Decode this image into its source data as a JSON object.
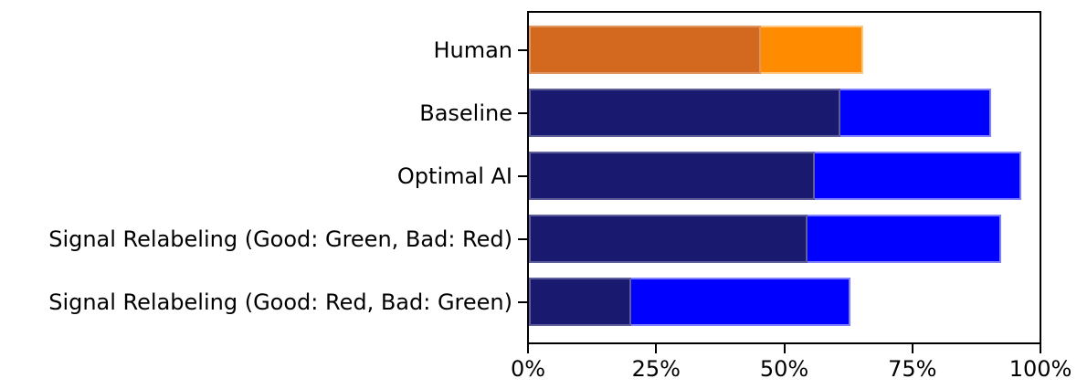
{
  "chart_data": {
    "type": "bar",
    "orientation": "horizontal",
    "title": "",
    "xlabel": "",
    "ylabel": "",
    "categories": [
      "Human",
      "Baseline",
      "Optimal AI",
      "Signal Relabeling (Good: Green, Bad: Red)",
      "Signal Relabeling (Good: Red, Bad: Green)"
    ],
    "series": [
      {
        "name": "dark_segment",
        "values": [
          45.5,
          61,
          56,
          54.5,
          20
        ],
        "colors": [
          "#d2691e",
          "#191970",
          "#191970",
          "#191970",
          "#191970"
        ]
      },
      {
        "name": "total_bar",
        "values": [
          65.5,
          90.5,
          96.5,
          92.5,
          63
        ],
        "colors": [
          "#ff8c00",
          "#0000ff",
          "#0000ff",
          "#0000ff",
          "#0000ff"
        ]
      }
    ],
    "x_axis": {
      "tick_labels": [
        "0%",
        "25%",
        "50%",
        "75%",
        "100%"
      ],
      "tick_values": [
        0,
        25,
        50,
        75,
        100
      ],
      "min": 0,
      "max": 100
    },
    "grid": false,
    "legend": false,
    "plot_background": "#ffffff",
    "axis_color": "#000000",
    "text_color": "#000000"
  }
}
